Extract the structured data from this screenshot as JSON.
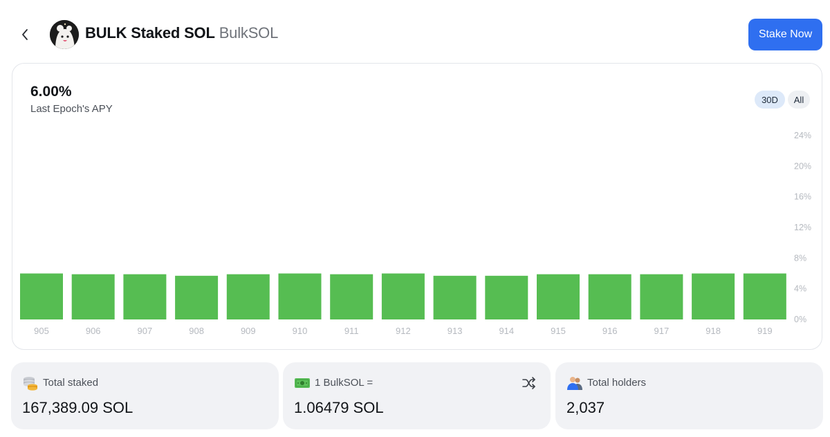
{
  "header": {
    "back_icon": "chevron-left-icon",
    "avatar_icon": "token-avatar",
    "title": "BULK Staked SOL",
    "symbol": "BulkSOL",
    "stake_button": "Stake Now"
  },
  "apy": {
    "value": "6.00%",
    "label": "Last Epoch's APY"
  },
  "ranges": {
    "selected": "30D",
    "options": [
      "30D",
      "All"
    ]
  },
  "chart_data": {
    "type": "bar",
    "categories": [
      "905",
      "906",
      "907",
      "908",
      "909",
      "910",
      "911",
      "912",
      "913",
      "914",
      "915",
      "916",
      "917",
      "918",
      "919"
    ],
    "values": [
      6.0,
      5.9,
      5.9,
      5.7,
      5.9,
      6.0,
      5.9,
      6.0,
      5.7,
      5.7,
      5.9,
      5.9,
      5.9,
      6.0,
      6.0
    ],
    "yticks": [
      "24%",
      "20%",
      "16%",
      "12%",
      "8%",
      "4%",
      "0%"
    ],
    "ylim": [
      0,
      24
    ],
    "bar_color": "#56bd52",
    "grid": false
  },
  "stats": [
    {
      "icon": "coins-icon",
      "label": "Total staked",
      "value": "167,389.09 SOL"
    },
    {
      "icon": "money-icon",
      "label": "1 BulkSOL =",
      "value": "1.06479 SOL",
      "action_icon": "shuffle-icon"
    },
    {
      "icon": "users-icon",
      "label": "Total holders",
      "value": "2,037"
    }
  ],
  "colors": {
    "accent": "#2f6ff0",
    "bar": "#56bd52",
    "selected_range_bg": "#dde9f9"
  }
}
